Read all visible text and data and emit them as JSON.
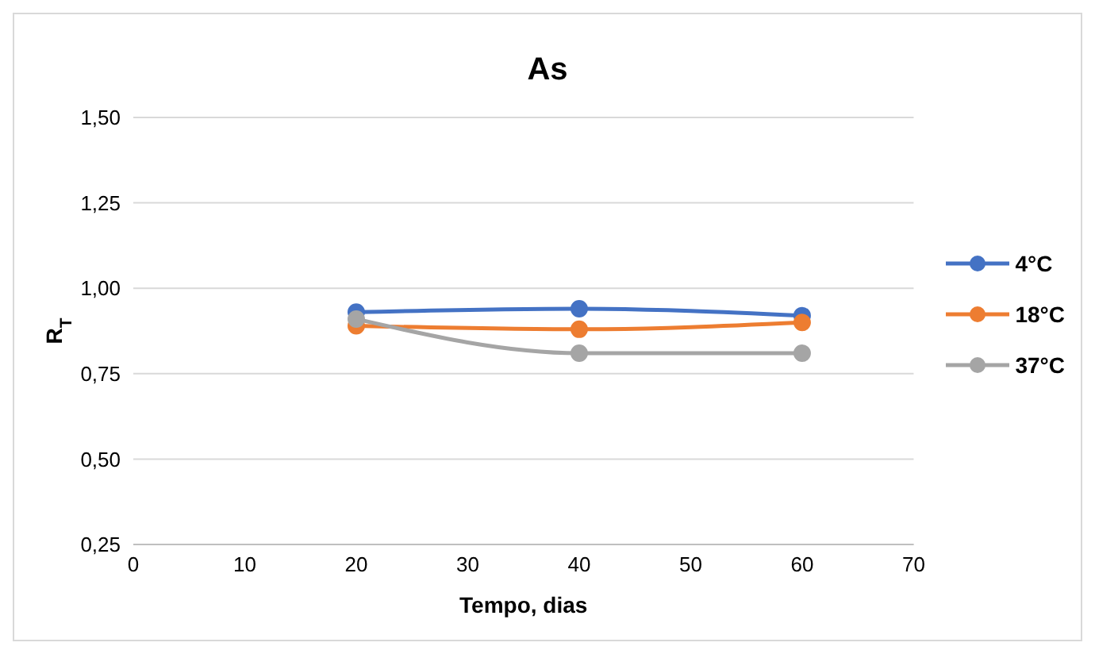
{
  "chart_data": {
    "type": "line",
    "title": "As",
    "xlabel": "Tempo, dias",
    "ylabel": "R$_{T}$",
    "x": [
      20,
      40,
      60
    ],
    "series": [
      {
        "name": "4°C",
        "color": "#4472c4",
        "values": [
          0.93,
          0.94,
          0.92
        ]
      },
      {
        "name": "18°C",
        "color": "#ed7d31",
        "values": [
          0.89,
          0.88,
          0.9
        ]
      },
      {
        "name": "37°C",
        "color": "#a5a5a5",
        "values": [
          0.91,
          0.81,
          0.81
        ]
      }
    ],
    "xlim": [
      0,
      70
    ],
    "xticks": [
      0,
      10,
      20,
      30,
      40,
      50,
      60,
      70
    ],
    "ylim": [
      0.25,
      1.5
    ],
    "yticks": [
      {
        "value": 0.25,
        "label": "0,25"
      },
      {
        "value": 0.5,
        "label": "0,50"
      },
      {
        "value": 0.75,
        "label": "0,75"
      },
      {
        "value": 1,
        "label": "1,00"
      },
      {
        "value": 1.25,
        "label": "1,25"
      },
      {
        "value": 1.5,
        "label": "1,50"
      }
    ],
    "grid": "y",
    "legend": "right",
    "marker": "circle",
    "line_style": "solid"
  }
}
